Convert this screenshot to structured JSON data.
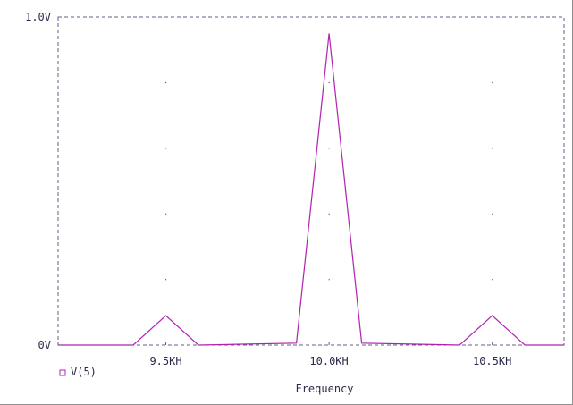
{
  "chart_data": {
    "type": "line",
    "title": "",
    "xlabel": "Frequency",
    "ylabel": "",
    "x_unit": "kHz",
    "xlim": [
      9.17,
      10.72
    ],
    "ylim": [
      0,
      1.0
    ],
    "x_ticks": [
      {
        "value": 9.5,
        "label": "9.5KH"
      },
      {
        "value": 10.0,
        "label": "10.0KH"
      },
      {
        "value": 10.5,
        "label": "10.5KH"
      }
    ],
    "y_ticks": [
      {
        "value": 0,
        "label": "0V"
      },
      {
        "value": 1.0,
        "label": "1.0V"
      }
    ],
    "grid": "dotted",
    "legend_position": "bottom-left",
    "series": [
      {
        "name": "V(5)",
        "color": "#b020b0",
        "x": [
          9.17,
          9.4,
          9.5,
          9.6,
          9.75,
          9.9,
          10.0,
          10.1,
          10.25,
          10.4,
          10.5,
          10.6,
          10.72
        ],
        "y": [
          0.0,
          0.0,
          0.09,
          0.0,
          0.003,
          0.006,
          0.95,
          0.006,
          0.003,
          0.0,
          0.09,
          0.0,
          0.0
        ]
      }
    ]
  }
}
